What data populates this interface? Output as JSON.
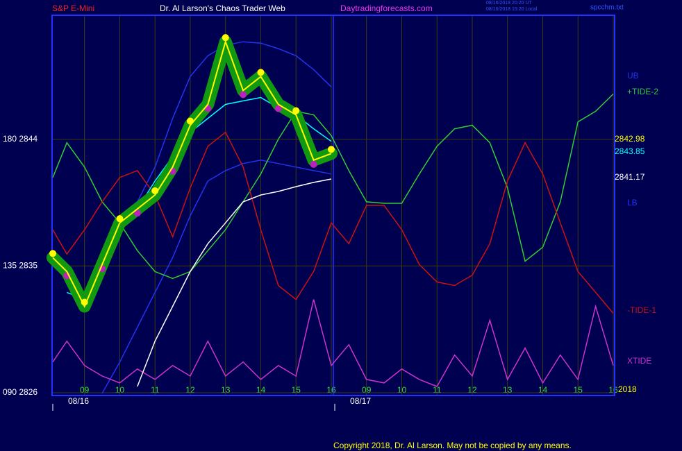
{
  "chart_data": {
    "type": "line",
    "symbol": "S&P E-Mini",
    "title": "Dr. Al Larson's Chaos Trader Web",
    "website": "Daytradingforecasts.com",
    "timestamps": [
      "08/16/2018 20:20 UT",
      "08/16/2018 15:20 Local"
    ],
    "file": "spcchm.txt",
    "copyright": "Copyright 2018, Dr. Al Larson. May not be copied by any means.",
    "year": "2018",
    "grid": true,
    "x": [
      0.1,
      0.5,
      1,
      1.5,
      2,
      2.5,
      3,
      3.5,
      4,
      4.5,
      5,
      5.5,
      6,
      6.5,
      7,
      7.5,
      8,
      8.5,
      9,
      9.5,
      10,
      10.5,
      11,
      11.5,
      12,
      12.5,
      13,
      13.5,
      14,
      14.5,
      15,
      15.5,
      16
    ],
    "xlim": [
      0.08,
      16.04
    ],
    "ylim": [
      2825.8,
      2852.8
    ],
    "xticks": [
      {
        "value": 1,
        "label": "09"
      },
      {
        "value": 2,
        "label": "10"
      },
      {
        "value": 3,
        "label": "11"
      },
      {
        "value": 4,
        "label": "12"
      },
      {
        "value": 5,
        "label": "13"
      },
      {
        "value": 6,
        "label": "14"
      },
      {
        "value": 7,
        "label": "15"
      },
      {
        "value": 8,
        "label": "16"
      },
      {
        "value": 9,
        "label": "09"
      },
      {
        "value": 10,
        "label": "10"
      },
      {
        "value": 11,
        "label": "11"
      },
      {
        "value": 12,
        "label": "12"
      },
      {
        "value": 13,
        "label": "13"
      },
      {
        "value": 14,
        "label": "14"
      },
      {
        "value": 15,
        "label": "15"
      },
      {
        "value": 16,
        "label": "16"
      }
    ],
    "date_ticks": [
      {
        "value": 0.1,
        "label": "08/16"
      },
      {
        "value": 8.1,
        "label": "08/17"
      }
    ],
    "yticks": [
      {
        "value": 2826,
        "label": "090  2826"
      },
      {
        "value": 2835,
        "label": "135  2835"
      },
      {
        "value": 2844,
        "label": "180  2844"
      }
    ],
    "series": [
      {
        "name": "UB",
        "color": "#2233ee",
        "values": [
          null,
          null,
          2833.12,
          2835.1,
          2837.57,
          2839.55,
          2842.02,
          2845.48,
          2848.45,
          2849.93,
          2850.67,
          2850.92,
          2850.82,
          2850.43,
          2849.93,
          2848.94,
          2847.71,
          null,
          null,
          null,
          null,
          null,
          null,
          null,
          null,
          null,
          null,
          null,
          null,
          null,
          null,
          null,
          null
        ]
      },
      {
        "name": "LB",
        "color": "#2233ee",
        "values": [
          null,
          null,
          null,
          2825.95,
          2828.17,
          2830.65,
          2833.12,
          2835.59,
          2838.56,
          2841.03,
          2841.77,
          2842.27,
          2842.51,
          2842.27,
          2842.02,
          2841.77,
          2841.53,
          null,
          null,
          null,
          null,
          null,
          null,
          null,
          null,
          null,
          null,
          null,
          null,
          null,
          null,
          null,
          null
        ]
      },
      {
        "name": "+TIDE-2",
        "color": "#33cc33",
        "values": [
          2841.28,
          2843.75,
          2842.02,
          2839.55,
          2838.06,
          2836.09,
          2834.6,
          2834.11,
          2834.6,
          2836.09,
          2837.57,
          2839.55,
          2841.53,
          2844.0,
          2845.98,
          2845.73,
          2844.25,
          2841.77,
          2839.55,
          2839.45,
          2839.45,
          2841.53,
          2843.5,
          2844.74,
          2844.99,
          2843.75,
          2840.54,
          2835.34,
          2836.33,
          2839.55,
          2845.23,
          2845.98,
          2847.21
        ]
      },
      {
        "name": "-TIDE-1",
        "color": "#cc1111",
        "values": [
          2837.57,
          2835.84,
          2837.57,
          2839.55,
          2841.28,
          2841.77,
          2840.04,
          2837.07,
          2840.54,
          2843.5,
          2844.49,
          2842.02,
          2837.57,
          2833.61,
          2832.62,
          2834.6,
          2838.06,
          2836.58,
          2839.3,
          2839.3,
          2837.57,
          2835.1,
          2833.86,
          2833.61,
          2834.35,
          2836.58,
          2841.03,
          2843.75,
          2841.53,
          2838.06,
          2834.6,
          2833.12,
          2831.64
        ]
      },
      {
        "name": "XTIDE",
        "color": "#cc33cc",
        "values": [
          2828.18,
          2829.66,
          2827.93,
          2827.18,
          2826.69,
          2827.68,
          2826.94,
          2827.93,
          2827.18,
          2829.66,
          2827.18,
          2828.18,
          2826.94,
          2827.93,
          2827.18,
          2832.62,
          2827.93,
          2829.41,
          2826.94,
          2826.69,
          2827.68,
          2826.94,
          2826.44,
          2828.67,
          2827.18,
          2831.14,
          2826.94,
          2829.17,
          2826.69,
          2828.67,
          2826.94,
          2832.13,
          2827.93
        ]
      },
      {
        "color": "#ffffff",
        "values": [
          null,
          null,
          null,
          null,
          null,
          2826.44,
          2829.66,
          2832.13,
          2834.6,
          2836.58,
          2838.06,
          2839.55,
          2840.04,
          2840.29,
          2840.63,
          2840.93,
          2841.17,
          null,
          null,
          null,
          null,
          null,
          null,
          null,
          null,
          null,
          null,
          null,
          null,
          null,
          null,
          null,
          null
        ]
      },
      {
        "color": "#00ffff",
        "values": [
          null,
          2833.12,
          2832.62,
          2834.6,
          2837.57,
          2839.05,
          2841.03,
          2842.76,
          2844.49,
          2845.48,
          2846.47,
          2846.72,
          2846.96,
          2846.22,
          2845.73,
          2844.74,
          2843.85,
          null,
          null,
          null,
          null,
          null,
          null,
          null,
          null,
          null,
          null,
          null,
          null,
          null,
          null,
          null,
          null
        ]
      },
      {
        "color": "#ffff00",
        "halo": "#119911",
        "values": [
          2835.59,
          2834.6,
          2832.13,
          2835.1,
          2838.06,
          2839.05,
          2840.04,
          2842.02,
          2844.99,
          2846.47,
          2850.92,
          2847.46,
          2848.45,
          2846.47,
          2845.73,
          2842.51,
          2842.98,
          null,
          null,
          null,
          null,
          null,
          null,
          null,
          null,
          null,
          null,
          null,
          null,
          null,
          null,
          null,
          null
        ]
      }
    ]
  }
}
